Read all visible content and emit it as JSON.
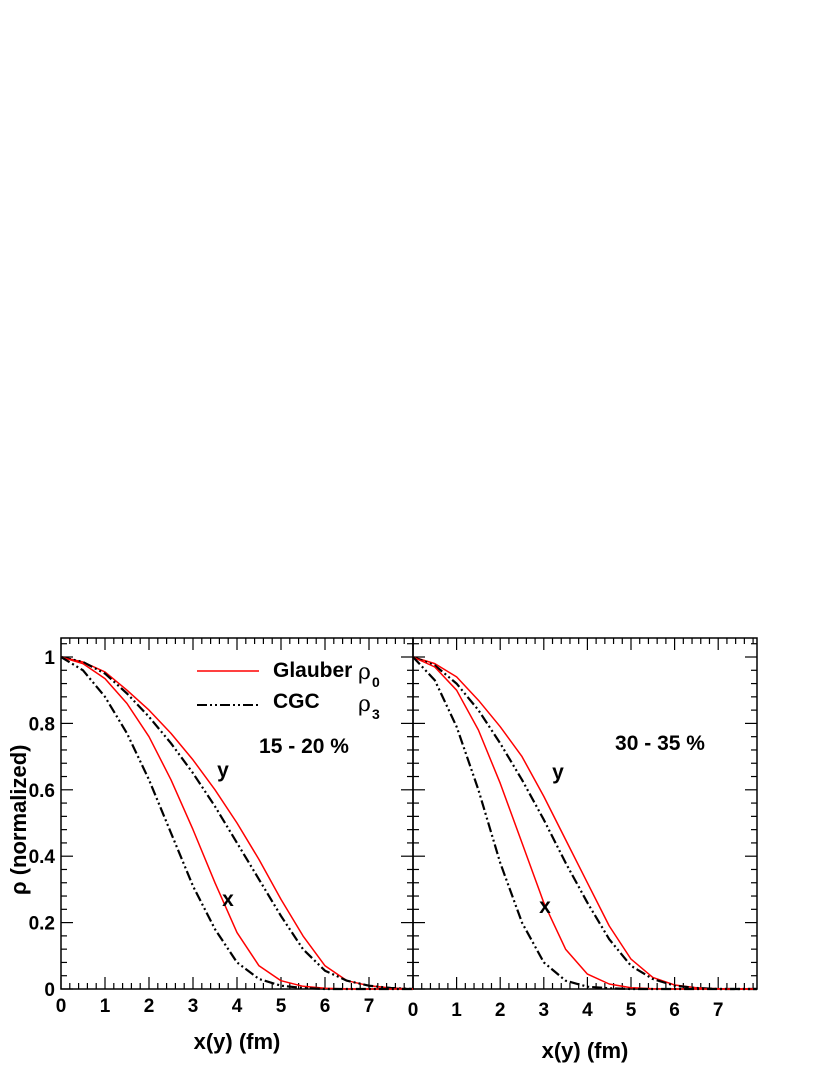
{
  "chart_data": [
    {
      "type": "line",
      "panel": "left",
      "ylabel": "ρ (normalized)",
      "xlabel": "x(y) (fm)",
      "xlim": [
        0,
        8
      ],
      "ylim": [
        0,
        1.05
      ],
      "xticks": [
        "0",
        "1",
        "2",
        "3",
        "4",
        "5",
        "6",
        "7"
      ],
      "yticks": [
        "0",
        "0.2",
        "0.4",
        "0.6",
        "0.8",
        "1"
      ],
      "annotation": "15 - 20 %",
      "curve_labels": [
        "y",
        "x"
      ],
      "legend": {
        "entries": [
          {
            "label": "Glauber",
            "symbol": "ρ",
            "sub": "0",
            "style": "solid",
            "color": "#ff0000"
          },
          {
            "label": "CGC",
            "symbol": "ρ",
            "sub": "3",
            "style": "dash-dot-dot",
            "color": "#000000"
          }
        ]
      },
      "series": [
        {
          "name": "Glauber y",
          "style": "solid",
          "color": "#ff0000",
          "x": [
            0,
            0.5,
            1,
            1.5,
            2,
            2.5,
            3,
            3.5,
            4,
            4.5,
            5,
            5.5,
            6,
            6.5,
            7,
            7.5,
            8
          ],
          "y": [
            1.0,
            0.985,
            0.955,
            0.9,
            0.84,
            0.77,
            0.69,
            0.6,
            0.5,
            0.39,
            0.27,
            0.16,
            0.07,
            0.025,
            0.01,
            0.003,
            0.0
          ]
        },
        {
          "name": "CGC y",
          "style": "dash-dot-dot",
          "color": "#000000",
          "x": [
            0,
            0.5,
            1,
            1.5,
            2,
            2.5,
            3,
            3.5,
            4,
            4.5,
            5,
            5.5,
            6,
            6.5,
            7,
            7.5,
            8
          ],
          "y": [
            1.0,
            0.985,
            0.95,
            0.89,
            0.82,
            0.74,
            0.65,
            0.55,
            0.44,
            0.33,
            0.22,
            0.12,
            0.055,
            0.025,
            0.01,
            0.003,
            0.0
          ]
        },
        {
          "name": "Glauber x",
          "style": "solid",
          "color": "#ff0000",
          "x": [
            0,
            0.5,
            1,
            1.5,
            2,
            2.5,
            3,
            3.5,
            4,
            4.5,
            5,
            5.5,
            6,
            6.5,
            7,
            7.5,
            8
          ],
          "y": [
            1.0,
            0.98,
            0.935,
            0.86,
            0.76,
            0.63,
            0.48,
            0.32,
            0.17,
            0.07,
            0.025,
            0.008,
            0.002,
            0.0,
            0.0,
            0.0,
            0.0
          ]
        },
        {
          "name": "CGC x",
          "style": "dash-dot-dot",
          "color": "#000000",
          "x": [
            0,
            0.5,
            1,
            1.5,
            2,
            2.5,
            3,
            3.5,
            4,
            4.5,
            5,
            5.5,
            6,
            6.5,
            7,
            7.5,
            8
          ],
          "y": [
            1.0,
            0.96,
            0.88,
            0.77,
            0.63,
            0.47,
            0.31,
            0.18,
            0.08,
            0.03,
            0.01,
            0.003,
            0.0,
            0.0,
            0.0,
            0.0,
            0.0
          ]
        }
      ]
    },
    {
      "type": "line",
      "panel": "right",
      "xlabel": "x(y) (fm)",
      "xlim": [
        0,
        8
      ],
      "ylim": [
        0,
        1.05
      ],
      "xticks": [
        "0",
        "1",
        "2",
        "3",
        "4",
        "5",
        "6",
        "7"
      ],
      "annotation": "30 - 35 %",
      "curve_labels": [
        "y",
        "x"
      ],
      "series": [
        {
          "name": "Glauber y",
          "style": "solid",
          "color": "#ff0000",
          "x": [
            0,
            0.5,
            1,
            1.5,
            2,
            2.5,
            3,
            3.5,
            4,
            4.5,
            5,
            5.5,
            6,
            6.5,
            7,
            7.5,
            8
          ],
          "y": [
            1.0,
            0.98,
            0.94,
            0.87,
            0.79,
            0.7,
            0.58,
            0.45,
            0.32,
            0.19,
            0.09,
            0.035,
            0.012,
            0.004,
            0.001,
            0.0,
            0.0
          ]
        },
        {
          "name": "CGC y",
          "style": "dash-dot-dot",
          "color": "#000000",
          "x": [
            0,
            0.5,
            1,
            1.5,
            2,
            2.5,
            3,
            3.5,
            4,
            4.5,
            5,
            5.5,
            6,
            6.5,
            7,
            7.5,
            8
          ],
          "y": [
            1.0,
            0.975,
            0.92,
            0.84,
            0.74,
            0.63,
            0.51,
            0.38,
            0.26,
            0.15,
            0.07,
            0.03,
            0.01,
            0.003,
            0.0,
            0.0,
            0.0
          ]
        },
        {
          "name": "Glauber x",
          "style": "solid",
          "color": "#ff0000",
          "x": [
            0,
            0.5,
            1,
            1.5,
            2,
            2.5,
            3,
            3.5,
            4,
            4.5,
            5,
            5.5,
            6,
            6.5,
            7,
            7.5,
            8
          ],
          "y": [
            1.0,
            0.97,
            0.9,
            0.78,
            0.62,
            0.44,
            0.26,
            0.12,
            0.045,
            0.015,
            0.004,
            0.001,
            0.0,
            0.0,
            0.0,
            0.0,
            0.0
          ]
        },
        {
          "name": "CGC x",
          "style": "dash-dot-dot",
          "color": "#000000",
          "x": [
            0,
            0.5,
            1,
            1.5,
            2,
            2.5,
            3,
            3.5,
            4,
            4.5,
            5,
            5.5,
            6,
            6.5,
            7,
            7.5,
            8
          ],
          "y": [
            1.0,
            0.93,
            0.79,
            0.6,
            0.38,
            0.2,
            0.08,
            0.025,
            0.007,
            0.002,
            0.0,
            0.0,
            0.0,
            0.0,
            0.0,
            0.0,
            0.0
          ]
        }
      ]
    }
  ]
}
